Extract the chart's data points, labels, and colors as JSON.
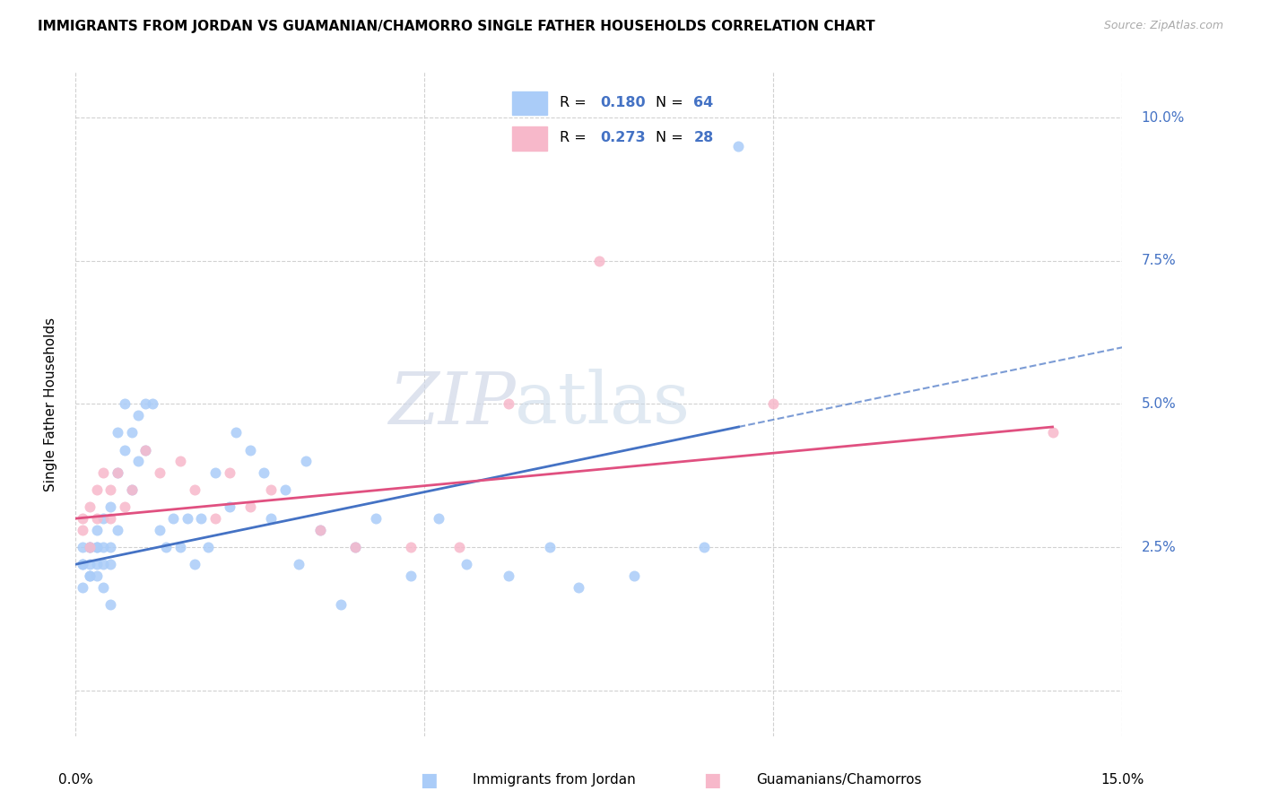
{
  "title": "IMMIGRANTS FROM JORDAN VS GUAMANIAN/CHAMORRO SINGLE FATHER HOUSEHOLDS CORRELATION CHART",
  "source": "Source: ZipAtlas.com",
  "ylabel": "Single Father Households",
  "y_ticks": [
    0.0,
    0.025,
    0.05,
    0.075,
    0.1
  ],
  "y_tick_labels": [
    "",
    "2.5%",
    "5.0%",
    "7.5%",
    "10.0%"
  ],
  "xlim": [
    0.0,
    0.15
  ],
  "ylim": [
    -0.008,
    0.108
  ],
  "r1": 0.18,
  "n1": 64,
  "r2": 0.273,
  "n2": 28,
  "color1": "#aaccf8",
  "color2": "#f7b8ca",
  "trendline1_color": "#4472c4",
  "trendline2_color": "#e05080",
  "legend_label1": "Immigrants from Jordan",
  "legend_label2": "Guamanians/Chamorros",
  "watermark_zip": "ZIP",
  "watermark_atlas": "atlas",
  "jordan_x": [
    0.001,
    0.001,
    0.001,
    0.001,
    0.002,
    0.002,
    0.002,
    0.002,
    0.002,
    0.003,
    0.003,
    0.003,
    0.003,
    0.003,
    0.004,
    0.004,
    0.004,
    0.004,
    0.005,
    0.005,
    0.005,
    0.005,
    0.006,
    0.006,
    0.006,
    0.007,
    0.007,
    0.008,
    0.008,
    0.009,
    0.009,
    0.01,
    0.01,
    0.011,
    0.012,
    0.013,
    0.014,
    0.015,
    0.016,
    0.017,
    0.018,
    0.019,
    0.02,
    0.022,
    0.023,
    0.025,
    0.027,
    0.028,
    0.03,
    0.032,
    0.033,
    0.035,
    0.038,
    0.04,
    0.043,
    0.048,
    0.052,
    0.056,
    0.062,
    0.068,
    0.072,
    0.08,
    0.09,
    0.095
  ],
  "jordan_y": [
    0.022,
    0.025,
    0.022,
    0.018,
    0.025,
    0.02,
    0.022,
    0.025,
    0.02,
    0.025,
    0.028,
    0.022,
    0.025,
    0.02,
    0.03,
    0.025,
    0.022,
    0.018,
    0.032,
    0.025,
    0.022,
    0.015,
    0.045,
    0.038,
    0.028,
    0.05,
    0.042,
    0.045,
    0.035,
    0.048,
    0.04,
    0.05,
    0.042,
    0.05,
    0.028,
    0.025,
    0.03,
    0.025,
    0.03,
    0.022,
    0.03,
    0.025,
    0.038,
    0.032,
    0.045,
    0.042,
    0.038,
    0.03,
    0.035,
    0.022,
    0.04,
    0.028,
    0.015,
    0.025,
    0.03,
    0.02,
    0.03,
    0.022,
    0.02,
    0.025,
    0.018,
    0.02,
    0.025,
    0.095
  ],
  "guam_x": [
    0.001,
    0.001,
    0.002,
    0.002,
    0.003,
    0.003,
    0.004,
    0.005,
    0.005,
    0.006,
    0.007,
    0.008,
    0.01,
    0.012,
    0.015,
    0.017,
    0.02,
    0.022,
    0.025,
    0.028,
    0.035,
    0.04,
    0.048,
    0.055,
    0.062,
    0.075,
    0.1,
    0.14
  ],
  "guam_y": [
    0.03,
    0.028,
    0.032,
    0.025,
    0.035,
    0.03,
    0.038,
    0.03,
    0.035,
    0.038,
    0.032,
    0.035,
    0.042,
    0.038,
    0.04,
    0.035,
    0.03,
    0.038,
    0.032,
    0.035,
    0.028,
    0.025,
    0.025,
    0.025,
    0.05,
    0.075,
    0.05,
    0.045
  ],
  "trendline1_x_start": 0.0,
  "trendline1_x_end": 0.095,
  "trendline1_x_dash_end": 0.15,
  "trendline1_y_start": 0.022,
  "trendline1_y_at_end": 0.046,
  "trendline2_x_start": 0.0,
  "trendline2_x_end": 0.14,
  "trendline2_y_start": 0.03,
  "trendline2_y_at_end": 0.046
}
